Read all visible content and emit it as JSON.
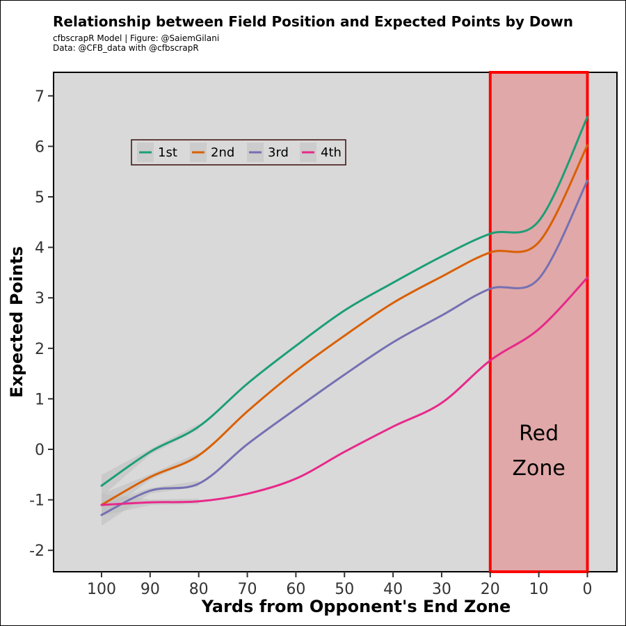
{
  "header": {
    "title": "Relationship between Field Position and Expected Points by Down",
    "subtitle_line1": "cfbscrapR Model | Figure: @SaiemGilani",
    "subtitle_line2": "Data: @CFB_data with @cfbscrapR"
  },
  "chart_data": {
    "type": "line",
    "title": "Relationship between Field Position and Expected Points by Down",
    "xlabel": "Yards from Opponent's End Zone",
    "ylabel": "Expected Points",
    "xlim": [
      100,
      0
    ],
    "ylim": [
      -2,
      7
    ],
    "x_reversed": true,
    "xticks": [
      100,
      90,
      80,
      70,
      60,
      50,
      40,
      30,
      20,
      10,
      0
    ],
    "yticks": [
      -2,
      -1,
      0,
      1,
      2,
      3,
      4,
      5,
      6,
      7
    ],
    "grid": false,
    "legend_position": "top-left",
    "x": [
      100,
      90,
      80,
      70,
      60,
      50,
      40,
      30,
      20,
      10,
      0
    ],
    "series": [
      {
        "name": "1st",
        "color": "#1b9e77",
        "values": [
          -0.72,
          -0.05,
          0.45,
          1.3,
          2.05,
          2.75,
          3.3,
          3.82,
          4.27,
          4.52,
          6.58
        ]
      },
      {
        "name": "2nd",
        "color": "#d95f02",
        "values": [
          -1.1,
          -0.55,
          -0.12,
          0.75,
          1.55,
          2.25,
          2.9,
          3.42,
          3.9,
          4.1,
          6.02
        ]
      },
      {
        "name": "3rd",
        "color": "#7570b3",
        "values": [
          -1.3,
          -0.82,
          -0.68,
          0.1,
          0.8,
          1.48,
          2.12,
          2.65,
          3.18,
          3.38,
          5.32
        ]
      },
      {
        "name": "4th",
        "color": "#e7298a",
        "values": [
          -1.1,
          -1.05,
          -1.03,
          -0.88,
          -0.58,
          -0.05,
          0.45,
          0.92,
          1.76,
          2.38,
          3.4
        ]
      }
    ],
    "annotation": {
      "label_line1": "Red",
      "label_line2": "Zone",
      "x_range": [
        20,
        0
      ],
      "fill_color": "#e0a8a8",
      "border_color": "#ff0000"
    }
  }
}
